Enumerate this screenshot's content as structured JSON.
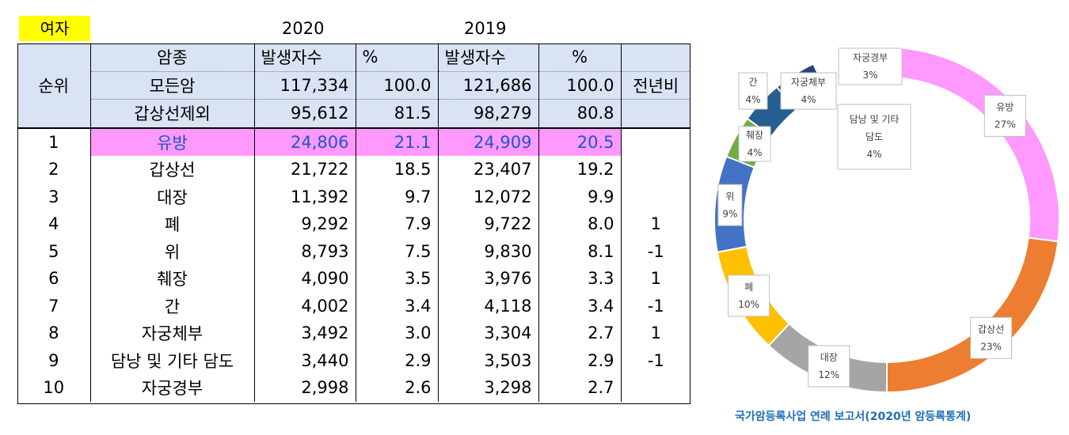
{
  "header": {
    "gender": "여자",
    "year_a": "2020",
    "year_b": "2019"
  },
  "table": {
    "rank_header": "순위",
    "ratio_header": "전년비",
    "col_headers": [
      "암종",
      "발생자수",
      "%",
      "발생자수",
      "%"
    ],
    "summary_rows": [
      {
        "name": "모든암",
        "c2020": "117,334",
        "p2020": "100.0",
        "c2019": "121,686",
        "p2019": "100.0"
      },
      {
        "name": "갑상선제외",
        "c2020": "95,612",
        "p2020": "81.5",
        "c2019": "98,279",
        "p2019": "80.8"
      }
    ],
    "rows": [
      {
        "rank": "1",
        "name": "유방",
        "c2020": "24,806",
        "p2020": "21.1",
        "c2019": "24,909",
        "p2019": "20.5",
        "change": ""
      },
      {
        "rank": "2",
        "name": "갑상선",
        "c2020": "21,722",
        "p2020": "18.5",
        "c2019": "23,407",
        "p2019": "19.2",
        "change": ""
      },
      {
        "rank": "3",
        "name": "대장",
        "c2020": "11,392",
        "p2020": "9.7",
        "c2019": "12,072",
        "p2019": "9.9",
        "change": ""
      },
      {
        "rank": "4",
        "name": "폐",
        "c2020": "9,292",
        "p2020": "7.9",
        "c2019": "9,722",
        "p2019": "8.0",
        "change": "1"
      },
      {
        "rank": "5",
        "name": "위",
        "c2020": "8,793",
        "p2020": "7.5",
        "c2019": "9,830",
        "p2019": "8.1",
        "change": "-1"
      },
      {
        "rank": "6",
        "name": "췌장",
        "c2020": "4,090",
        "p2020": "3.5",
        "c2019": "3,976",
        "p2019": "3.3",
        "change": "1"
      },
      {
        "rank": "7",
        "name": "간",
        "c2020": "4,002",
        "p2020": "3.4",
        "c2019": "4,118",
        "p2019": "3.4",
        "change": "-1"
      },
      {
        "rank": "8",
        "name": "자궁체부",
        "c2020": "3,492",
        "p2020": "3.0",
        "c2019": "3,304",
        "p2019": "2.7",
        "change": "1"
      },
      {
        "rank": "9",
        "name": "담낭 및 기타 담도",
        "c2020": "3,440",
        "p2020": "2.9",
        "c2019": "3,503",
        "p2019": "2.9",
        "change": "-1"
      },
      {
        "rank": "10",
        "name": "자궁경부",
        "c2020": "2,998",
        "p2020": "2.6",
        "c2019": "3,298",
        "p2019": "2.7",
        "change": ""
      }
    ]
  },
  "chart_data": {
    "type": "pie",
    "variant": "doughnut",
    "categories": [
      "유방",
      "갑상선",
      "대장",
      "폐",
      "위",
      "췌장",
      "간",
      "자궁체부",
      "담낭 및 기타 담도",
      "자궁경부"
    ],
    "values": [
      27,
      23,
      12,
      10,
      9,
      4,
      4,
      4,
      4,
      3
    ],
    "labels": [
      "27%",
      "23%",
      "12%",
      "10%",
      "9%",
      "4%",
      "4%",
      "4%",
      "4%",
      "3%"
    ],
    "colors": [
      "#ff99ff",
      "#ed7d31",
      "#a5a5a5",
      "#ffc000",
      "#4472c4",
      "#70ad47",
      "#255e91",
      "#264478",
      "#ffffff",
      "#636363"
    ]
  },
  "source": "국가암등록사업 연례 보고서(2020년 암등록통계)"
}
